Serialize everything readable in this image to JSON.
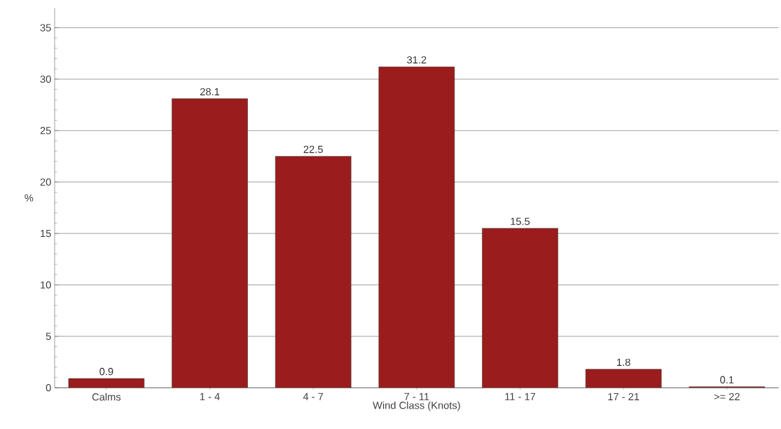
{
  "chart_data": {
    "type": "bar",
    "xlabel": "Wind Class (Knots)",
    "ylabel": "%",
    "categories": [
      "Calms",
      "1 - 4",
      "4 - 7",
      "7 - 11",
      "11 - 17",
      "17 - 21",
      ">= 22"
    ],
    "values": [
      0.9,
      28.1,
      22.5,
      31.2,
      15.5,
      1.8,
      0.1
    ],
    "color": "#9b1c1c",
    "ylim": [
      0,
      36.9
    ],
    "yticks": [
      0,
      5,
      10,
      15,
      20,
      25,
      30,
      35
    ],
    "grid": "y",
    "data_labels": true
  }
}
